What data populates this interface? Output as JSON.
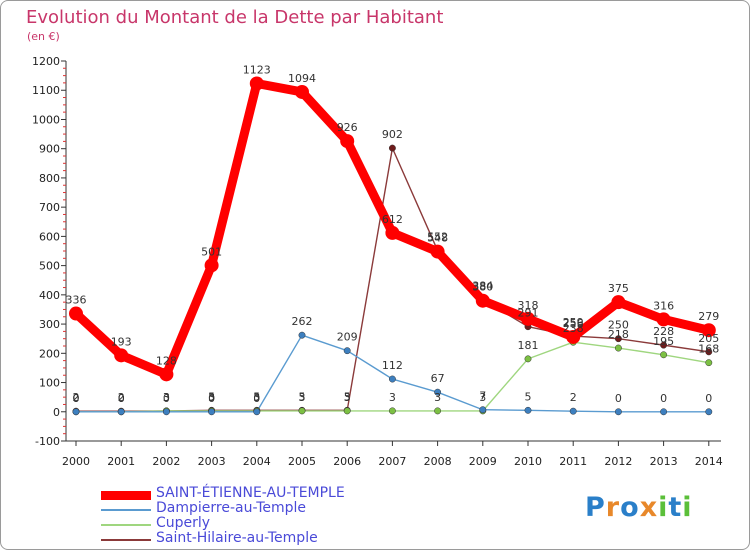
{
  "title": "Evolution du Montant de la Dette par Habitant",
  "unit": "(en €)",
  "logo": "Proxiti",
  "chart_data": {
    "type": "line",
    "title": "Evolution du Montant de la Dette par Habitant",
    "ylabel": "(en €)",
    "xlabel": "",
    "x": [
      "2000",
      "2001",
      "2002",
      "2003",
      "2004",
      "2005",
      "2006",
      "2007",
      "2008",
      "2009",
      "2010",
      "2011",
      "2012",
      "2013",
      "2014"
    ],
    "ylim": [
      -100,
      1200
    ],
    "yticks": [
      -100,
      0,
      100,
      200,
      300,
      400,
      500,
      600,
      700,
      800,
      900,
      1000,
      1100,
      1200
    ],
    "grid": false,
    "legend_position": "bottom",
    "series": [
      {
        "name": "SAINT-ÉTIENNE-AU-TEMPLE",
        "color": "#ff0000",
        "marker": "#e01010",
        "values": [
          336,
          193,
          128,
          501,
          1123,
          1094,
          926,
          612,
          548,
          380,
          318,
          256,
          375,
          316,
          279
        ],
        "labels": [
          "336",
          "193",
          "128",
          "501",
          "1123",
          "1094",
          "926",
          "612",
          "548",
          "380",
          "318",
          "256",
          "375",
          "316",
          "279"
        ]
      },
      {
        "name": "Dampierre-au-Temple",
        "color": "#5a9bd0",
        "marker": "#3d7fbf",
        "values": [
          0,
          0,
          0,
          0,
          0,
          262,
          209,
          112,
          67,
          7,
          5,
          2,
          0,
          0,
          0
        ],
        "labels": [
          "0",
          "0",
          "0",
          "0",
          "0",
          "262",
          "209",
          "112",
          "67",
          "7",
          "5",
          "2",
          "0",
          "0",
          "0"
        ]
      },
      {
        "name": "Cuperly",
        "color": "#9fd67f",
        "marker": "#7cc043",
        "values": [
          0,
          0,
          3,
          3,
          3,
          3,
          3,
          3,
          3,
          3,
          181,
          238,
          218,
          195,
          168
        ],
        "labels": [
          "0",
          "0",
          "3",
          "3",
          "3",
          "3",
          "3",
          "3",
          "3",
          "3",
          "181",
          "238",
          "218",
          "195",
          "168"
        ]
      },
      {
        "name": "Saint-Hilaire-au-Temple",
        "color": "#8b3a3a",
        "marker": "#6e1c1c",
        "values": [
          2,
          2,
          3,
          5,
          5,
          5,
          5,
          902,
          552,
          384,
          291,
          259,
          250,
          228,
          205
        ],
        "labels": [
          "2",
          "2",
          "3",
          "5",
          "5",
          "5",
          "5",
          "902",
          "552",
          "384",
          "291",
          "259",
          "250",
          "228",
          "205"
        ]
      }
    ]
  }
}
